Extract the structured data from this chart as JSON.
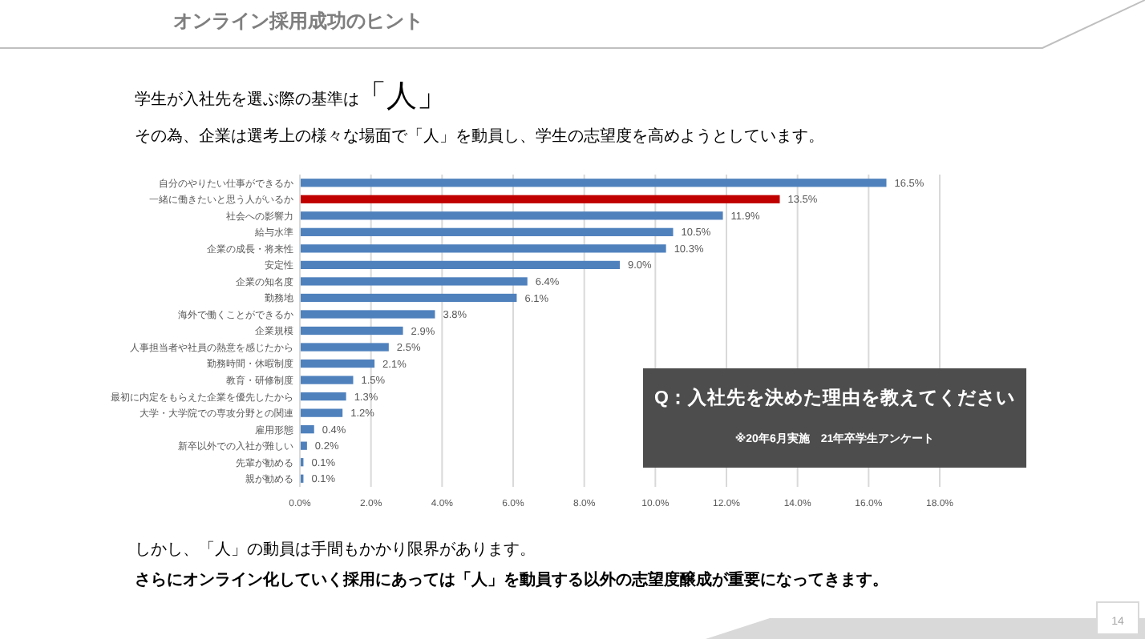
{
  "chart_data": {
    "type": "bar",
    "orientation": "horizontal",
    "title": "Q：入社先を決めた理由を教えてください",
    "subtitle": "※20年6月実施　21年卒学生アンケート",
    "categories": [
      "自分のやりたい仕事ができるか",
      "一緒に働きたいと思う人がいるか",
      "社会への影響力",
      "給与水準",
      "企業の成長・将来性",
      "安定性",
      "企業の知名度",
      "勤務地",
      "海外で働くことができるか",
      "企業規模",
      "人事担当者や社員の熱意を感じたから",
      "勤務時間・休暇制度",
      "教育・研修制度",
      "最初に内定をもらえた企業を優先したから",
      "大学・大学院での専攻分野との関連",
      "雇用形態",
      "新卒以外での入社が難しい",
      "先輩が勧める",
      "親が勧める"
    ],
    "values": [
      16.5,
      13.5,
      11.9,
      10.5,
      10.3,
      9.0,
      6.4,
      6.1,
      3.8,
      2.9,
      2.5,
      2.1,
      1.5,
      1.3,
      1.2,
      0.4,
      0.2,
      0.1,
      0.1
    ],
    "colors": [
      "#4f81bd",
      "#c00000",
      "#4f81bd",
      "#4f81bd",
      "#4f81bd",
      "#4f81bd",
      "#4f81bd",
      "#4f81bd",
      "#4f81bd",
      "#4f81bd",
      "#4f81bd",
      "#4f81bd",
      "#4f81bd",
      "#4f81bd",
      "#4f81bd",
      "#4f81bd",
      "#4f81bd",
      "#4f81bd",
      "#4f81bd"
    ],
    "value_labels": [
      "16.5%",
      "13.5%",
      "11.9%",
      "10.5%",
      "10.3%",
      "9.0%",
      "6.4%",
      "6.1%",
      "3.8%",
      "2.9%",
      "2.5%",
      "2.1%",
      "1.5%",
      "1.3%",
      "1.2%",
      "0.4%",
      "0.2%",
      "0.1%",
      "0.1%"
    ],
    "xlim": [
      0,
      18
    ],
    "xticks": [
      {
        "value": 0,
        "label": "0.0%"
      },
      {
        "value": 2,
        "label": "2.0%"
      },
      {
        "value": 4,
        "label": "4.0%"
      },
      {
        "value": 6,
        "label": "6.0%"
      },
      {
        "value": 8,
        "label": "8.0%"
      },
      {
        "value": 10,
        "label": "10.0%"
      },
      {
        "value": 12,
        "label": "12.0%"
      },
      {
        "value": 14,
        "label": "14.0%"
      },
      {
        "value": 16,
        "label": "16.0%"
      },
      {
        "value": 18,
        "label": "18.0%"
      }
    ],
    "grid": "x",
    "annotations": [
      "オンライン採用成功のヒント",
      "学生が入社先を選ぶ際の基準は",
      "「人」",
      "その為、企業は選考上の様々な場面で「人」を動員し、学生の志望度を高めようとしています。",
      "しかし、「人」の動員は手間もかかり限界があります。",
      "さらにオンライン化していく採用にあっては「人」を動員する以外の志望度醸成が重要になってきます。",
      "14"
    ]
  }
}
